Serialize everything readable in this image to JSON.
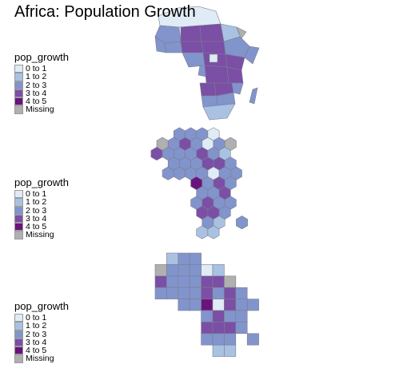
{
  "title": "Africa: Population Growth",
  "legend": {
    "title": "pop_growth",
    "items": [
      {
        "label": "0 to 1",
        "color": "#dfebf5"
      },
      {
        "label": "1 to 2",
        "color": "#a9c2e2"
      },
      {
        "label": "2 to 3",
        "color": "#8194cc"
      },
      {
        "label": "3 to 4",
        "color": "#7a4fa5"
      },
      {
        "label": "4 to 5",
        "color": "#6b137c"
      },
      {
        "label": "Missing",
        "color": "#b0b0b0"
      }
    ]
  },
  "colors": {
    "border": "#7d7d90",
    "background": "#ffffff"
  }
}
